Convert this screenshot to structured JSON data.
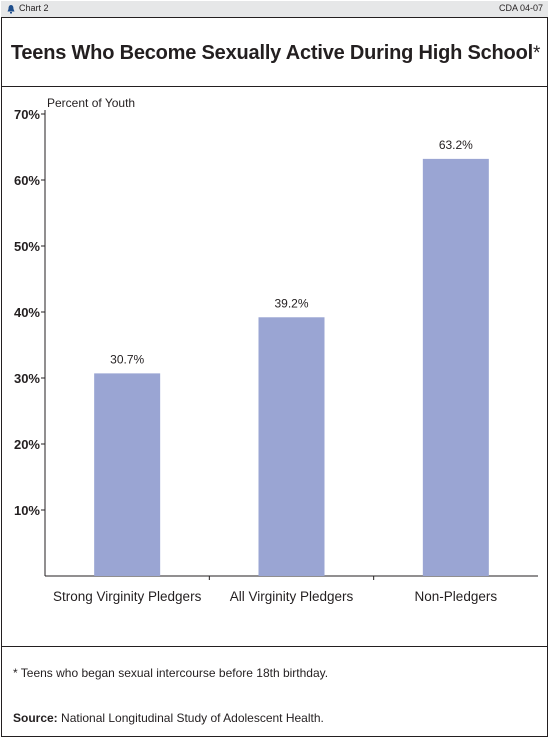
{
  "header": {
    "chart_label": "Chart 2",
    "chart_id": "CDA 04-07",
    "logo_icon": "bell-icon"
  },
  "title": {
    "text": "Teens Who Become Sexually Active During High School",
    "marker": "*"
  },
  "colors": {
    "bar": "#9aa5d3",
    "header_bg": "#e6e7e8",
    "text": "#231f20"
  },
  "chart_data": {
    "type": "bar",
    "ylabel": "Percent of Youth",
    "ylim": [
      0,
      70
    ],
    "yticks": [
      10,
      20,
      30,
      40,
      50,
      60,
      70
    ],
    "ytick_labels": [
      "10%",
      "20%",
      "30%",
      "40%",
      "50%",
      "60%",
      "70%"
    ],
    "categories": [
      "Strong Virginity Pledgers",
      "All Virginity Pledgers",
      "Non-Pledgers"
    ],
    "values": [
      30.7,
      39.2,
      63.2
    ],
    "data_labels": [
      "30.7%",
      "39.2%",
      "63.2%"
    ],
    "grid": false
  },
  "footnote": "* Teens who began sexual intercourse before 18th birthday.",
  "source": {
    "label": "Source:",
    "text": " National Longitudinal Study of Adolescent Health."
  }
}
